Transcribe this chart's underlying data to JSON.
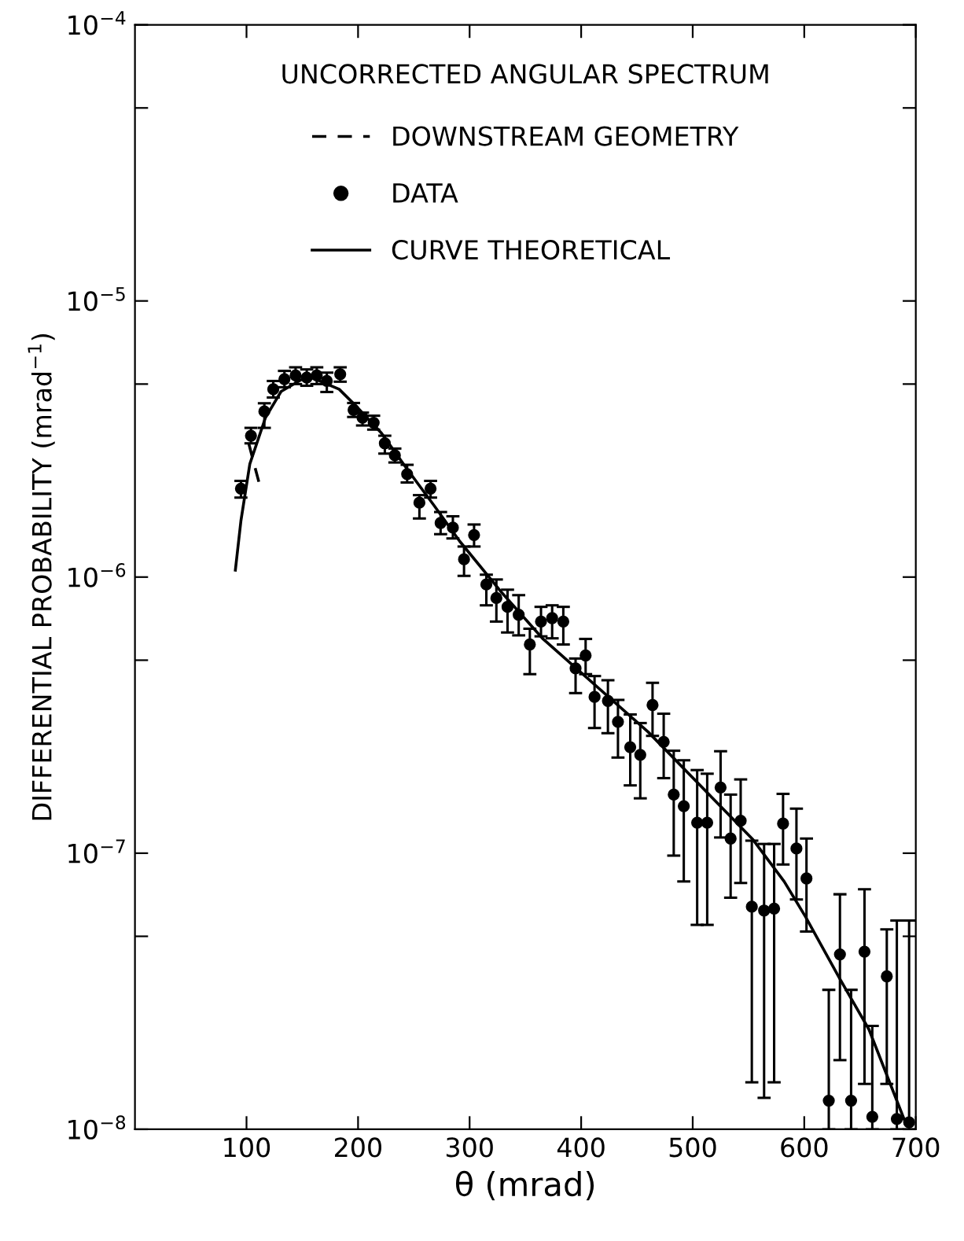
{
  "chart_data": {
    "type": "scatter",
    "title": "UNCORRECTED ANGULAR SPECTRUM",
    "xlabel": "θ (mrad)",
    "ylabel": "DIFFERENTIAL PROBABILITY (mrad$^{−1}$)",
    "log": "y",
    "xlim": [
      0,
      700
    ],
    "xticks": [
      100,
      200,
      300,
      400,
      500,
      600,
      700
    ],
    "ylim": [
      1e-08,
      0.0001
    ],
    "yticks": [
      {
        "value": 1e-08,
        "label": "10$^{−8}$"
      },
      {
        "value": 5e-08,
        "label": null
      },
      {
        "value": 1e-07,
        "label": "10$^{−7}$"
      },
      {
        "value": 5e-07,
        "label": null
      },
      {
        "value": 1e-06,
        "label": "10$^{−6}$"
      },
      {
        "value": 5e-06,
        "label": null
      },
      {
        "value": 1e-05,
        "label": "10$^{−5}$"
      },
      {
        "value": 5e-05,
        "label": null
      },
      {
        "value": 0.0001,
        "label": "10$^{−4}$"
      }
    ],
    "grid": false,
    "legend": "top",
    "series": [
      {
        "name": "DOWNSTREAM GEOMETRY",
        "type": "line",
        "line_style": "dashed",
        "marker": "none",
        "color": "#000000",
        "x": [
          102,
          107,
          112
        ],
        "values": [
          3.05e-06,
          2.55e-06,
          2.14e-06
        ]
      },
      {
        "name": "DATA",
        "marker": "circle",
        "color": "#000000",
        "x": [
          95,
          104,
          116,
          124,
          134,
          144,
          154,
          163,
          172,
          184,
          196,
          204,
          214,
          224,
          233,
          244,
          255,
          265,
          274,
          285,
          295,
          304,
          315,
          324,
          334,
          344,
          354,
          364,
          374,
          384,
          395,
          404,
          412,
          424,
          433,
          444,
          453,
          464,
          474,
          483,
          492,
          504,
          513,
          525,
          534,
          543,
          553,
          564,
          573,
          581,
          593,
          602,
          622,
          632,
          642,
          654,
          661,
          674,
          683,
          694
        ],
        "values": [
          2.09e-06,
          3.25e-06,
          3.98e-06,
          4.79e-06,
          5.21e-06,
          5.37e-06,
          5.28e-06,
          5.37e-06,
          5.13e-06,
          5.43e-06,
          4.03e-06,
          3.78e-06,
          3.62e-06,
          3.05e-06,
          2.76e-06,
          2.36e-06,
          1.86e-06,
          2.09e-06,
          1.57e-06,
          1.51e-06,
          1.16e-06,
          1.42e-06,
          9.4e-07,
          8.4e-07,
          7.8e-07,
          7.3e-07,
          5.7e-07,
          6.9e-07,
          7.1e-07,
          6.9e-07,
          4.67e-07,
          5.2e-07,
          3.68e-07,
          3.56e-07,
          2.99e-07,
          2.42e-07,
          2.27e-07,
          3.44e-07,
          2.53e-07,
          1.63e-07,
          1.48e-07,
          1.29e-07,
          1.29e-07,
          1.73e-07,
          1.13e-07,
          1.31e-07,
          6.4e-08,
          6.2e-08,
          6.3e-08,
          1.28e-07,
          1.04e-07,
          8.1e-08,
          1.27e-08,
          4.3e-08,
          1.27e-08,
          4.4e-08,
          1.11e-08,
          3.58e-08,
          1.09e-08,
          1.06e-08
        ],
        "errors": [
          [
            1.94e-06,
            2.23e-06
          ],
          [
            3.05e-06,
            3.47e-06
          ],
          [
            3.47e-06,
            4.26e-06
          ],
          [
            4.47e-06,
            5.13e-06
          ],
          [
            4.87e-06,
            5.58e-06
          ],
          [
            5e-06,
            5.75e-06
          ],
          [
            4.93e-06,
            5.65e-06
          ],
          [
            5e-06,
            5.75e-06
          ],
          [
            4.68e-06,
            5.5e-06
          ],
          [
            5.1e-06,
            5.75e-06
          ],
          [
            3.8e-06,
            4.27e-06
          ],
          [
            3.54e-06,
            3.94e-06
          ],
          [
            3.42e-06,
            3.84e-06
          ],
          [
            2.8e-06,
            3.25e-06
          ],
          [
            2.6e-06,
            2.92e-06
          ],
          [
            2.2e-06,
            2.55e-06
          ],
          [
            1.63e-06,
            1.98e-06
          ],
          [
            1.94e-06,
            2.23e-06
          ],
          [
            1.43e-06,
            1.72e-06
          ],
          [
            1.38e-06,
            1.66e-06
          ],
          [
            1.01e-06,
            1.29e-06
          ],
          [
            1.29e-06,
            1.55e-06
          ],
          [
            7.9e-07,
            1.02e-06
          ],
          [
            6.9e-07,
            9.8e-07
          ],
          [
            6.3e-07,
            9e-07
          ],
          [
            6.15e-07,
            8.6e-07
          ],
          [
            4.45e-07,
            6.5e-07
          ],
          [
            6.1e-07,
            7.8e-07
          ],
          [
            6e-07,
            7.9e-07
          ],
          [
            5.7e-07,
            7.8e-07
          ],
          [
            3.8e-07,
            5.07e-07
          ],
          [
            4.45e-07,
            5.97e-07
          ],
          [
            2.84e-07,
            4.38e-07
          ],
          [
            2.72e-07,
            4.23e-07
          ],
          [
            2.22e-07,
            3.59e-07
          ],
          [
            1.76e-07,
            3.18e-07
          ],
          [
            1.58e-07,
            2.96e-07
          ],
          [
            2.66e-07,
            4.14e-07
          ],
          [
            1.87e-07,
            3.2e-07
          ],
          [
            9.8e-08,
            2.35e-07
          ],
          [
            7.9e-08,
            2.17e-07
          ],
          [
            5.5e-08,
            2e-07
          ],
          [
            5.5e-08,
            1.94e-07
          ],
          [
            1.14e-07,
            2.34e-07
          ],
          [
            6.9e-08,
            1.63e-07
          ],
          [
            7.8e-08,
            1.85e-07
          ],
          [
            1.48e-08,
            1.11e-07
          ],
          [
            1.3e-08,
            1.08e-07
          ],
          [
            1.48e-08,
            1.08e-07
          ],
          [
            9.1e-08,
            1.64e-07
          ],
          [
            6.8e-08,
            1.45e-07
          ],
          [
            5.2e-08,
            1.13e-07
          ],
          [
            1e-08,
            3.2e-08
          ],
          [
            1.78e-08,
            7.1e-08
          ],
          [
            1e-08,
            3.2e-08
          ],
          [
            1.46e-08,
            7.4e-08
          ],
          [
            1e-08,
            2.37e-08
          ],
          [
            1.46e-08,
            5.3e-08
          ],
          [
            1e-08,
            5.7e-08
          ],
          [
            1e-08,
            5.7e-08
          ]
        ]
      },
      {
        "name": "CURVE THEORETICAL",
        "type": "line",
        "line_style": "solid",
        "marker": "none",
        "color": "#000000",
        "x": [
          90,
          95,
          103,
          117,
          131,
          155,
          183,
          197,
          221,
          244,
          268,
          291,
          329,
          366,
          460,
          554,
          582,
          601,
          632,
          658,
          691
        ],
        "values": [
          1.06e-06,
          1.6e-06,
          2.57e-06,
          3.78e-06,
          4.7e-06,
          5.35e-06,
          4.79e-06,
          4.21e-06,
          3.32e-06,
          2.46e-06,
          1.82e-06,
          1.35e-06,
          8.77e-07,
          5.96e-07,
          2.75e-07,
          1.12e-07,
          7.9e-08,
          5.9e-08,
          3.5e-08,
          2.3e-08,
          1.05e-08
        ]
      }
    ]
  }
}
